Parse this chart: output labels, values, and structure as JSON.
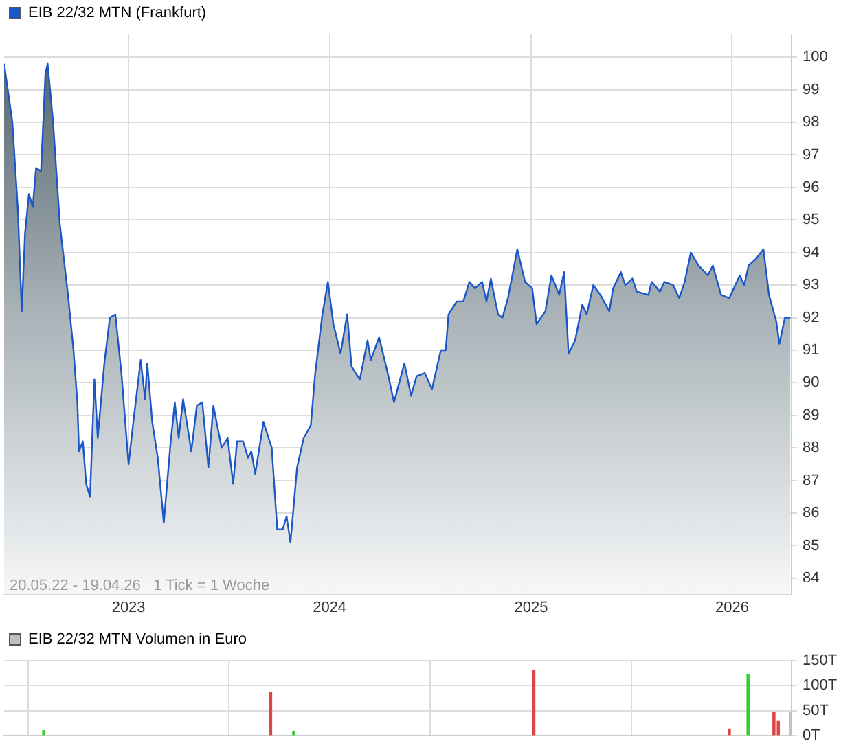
{
  "chart_data": [
    {
      "type": "area",
      "title": null,
      "series": [
        {
          "name": "EIB 22/32 MTN (Frankfurt)",
          "color": "#1a56c8",
          "x": [
            "2022-05-20",
            "2022-06-04",
            "2022-06-14",
            "2022-06-21",
            "2022-06-27",
            "2022-07-04",
            "2022-07-11",
            "2022-07-17",
            "2022-07-26",
            "2022-08-03",
            "2022-08-07",
            "2022-08-17",
            "2022-08-29",
            "2022-09-13",
            "2022-09-23",
            "2022-09-30",
            "2022-10-03",
            "2022-10-10",
            "2022-10-16",
            "2022-10-23",
            "2022-10-31",
            "2022-11-06",
            "2022-11-18",
            "2022-11-28",
            "2022-12-08",
            "2022-12-19",
            "2023-01-01",
            "2023-01-09",
            "2023-01-23",
            "2023-01-31",
            "2023-02-04",
            "2023-02-13",
            "2023-02-23",
            "2023-03-06",
            "2023-03-18",
            "2023-03-26",
            "2023-04-02",
            "2023-04-10",
            "2023-04-25",
            "2023-05-05",
            "2023-05-15",
            "2023-05-26",
            "2023-06-04",
            "2023-06-19",
            "2023-06-30",
            "2023-07-10",
            "2023-07-17",
            "2023-07-28",
            "2023-08-06",
            "2023-08-12",
            "2023-08-19",
            "2023-09-03",
            "2023-09-18",
            "2023-09-28",
            "2023-10-08",
            "2023-10-15",
            "2023-10-22",
            "2023-11-03",
            "2023-11-15",
            "2023-11-28",
            "2023-12-06",
            "2023-12-19",
            "2023-12-29",
            "2024-01-08",
            "2024-01-21",
            "2024-02-02",
            "2024-02-10",
            "2024-02-25",
            "2024-03-10",
            "2024-03-16",
            "2024-03-31",
            "2024-04-17",
            "2024-04-27",
            "2024-05-16",
            "2024-05-28",
            "2024-06-07",
            "2024-06-22",
            "2024-07-05",
            "2024-07-21",
            "2024-07-30",
            "2024-08-04",
            "2024-08-19",
            "2024-08-31",
            "2024-09-11",
            "2024-09-21",
            "2024-10-04",
            "2024-10-12",
            "2024-10-20",
            "2024-11-02",
            "2024-11-10",
            "2024-11-20",
            "2024-11-28",
            "2024-12-07",
            "2024-12-21",
            "2025-01-03",
            "2025-01-11",
            "2025-01-27",
            "2025-02-07",
            "2025-02-21",
            "2025-03-02",
            "2025-03-10",
            "2025-03-22",
            "2025-04-04",
            "2025-04-12",
            "2025-04-24",
            "2025-05-07",
            "2025-05-23",
            "2025-05-30",
            "2025-06-13",
            "2025-06-21",
            "2025-07-04",
            "2025-07-12",
            "2025-08-02",
            "2025-08-08",
            "2025-08-23",
            "2025-08-31",
            "2025-09-16",
            "2025-09-27",
            "2025-10-07",
            "2025-10-18",
            "2025-11-01",
            "2025-11-18",
            "2025-11-27",
            "2025-12-12",
            "2025-12-27",
            "2026-01-15",
            "2026-01-23",
            "2026-01-31",
            "2026-02-13",
            "2026-02-27",
            "2026-03-09",
            "2026-03-22",
            "2026-03-28",
            "2026-04-07",
            "2026-04-17"
          ],
          "values": [
            99.8,
            98.0,
            95.3,
            92.2,
            94.6,
            95.8,
            95.4,
            96.6,
            96.5,
            99.5,
            99.8,
            98.0,
            94.9,
            92.7,
            91.0,
            89.4,
            87.9,
            88.2,
            86.9,
            86.5,
            90.1,
            88.3,
            90.6,
            92.0,
            92.1,
            90.3,
            87.5,
            88.7,
            90.7,
            89.5,
            90.6,
            88.8,
            87.7,
            85.7,
            88.1,
            89.4,
            88.3,
            89.5,
            87.9,
            89.3,
            89.4,
            87.4,
            89.3,
            88.0,
            88.3,
            86.9,
            88.2,
            88.2,
            87.7,
            87.9,
            87.2,
            88.8,
            88.0,
            85.5,
            85.5,
            85.9,
            85.1,
            87.4,
            88.3,
            88.7,
            90.3,
            92.1,
            93.1,
            91.8,
            90.9,
            92.1,
            90.5,
            90.1,
            91.3,
            90.7,
            91.4,
            90.2,
            89.4,
            90.6,
            89.6,
            90.2,
            90.3,
            89.8,
            91.0,
            91.0,
            92.1,
            92.5,
            92.5,
            93.1,
            92.9,
            93.1,
            92.5,
            93.2,
            92.1,
            92.0,
            92.6,
            93.3,
            94.1,
            93.1,
            92.9,
            91.8,
            92.2,
            93.3,
            92.7,
            93.4,
            90.9,
            91.3,
            92.4,
            92.1,
            93.0,
            92.7,
            92.2,
            92.9,
            93.4,
            93.0,
            93.2,
            92.8,
            92.7,
            93.1,
            92.8,
            93.1,
            93.0,
            92.6,
            93.1,
            94.0,
            93.6,
            93.3,
            93.6,
            92.7,
            92.6,
            93.3,
            93.0,
            93.6,
            93.8,
            94.1,
            92.7,
            91.9,
            91.2,
            92.0,
            92.0
          ]
        }
      ],
      "xlim": [
        "2022-05-20",
        "2026-04-19"
      ],
      "xticks": [
        {
          "value": "2023-01-01",
          "label": "2023"
        },
        {
          "value": "2024-01-01",
          "label": "2024"
        },
        {
          "value": "2025-01-01",
          "label": "2025"
        },
        {
          "value": "2026-01-01",
          "label": "2026"
        }
      ],
      "ylim": [
        83.5,
        100.7
      ],
      "yticks": [
        84,
        85,
        86,
        87,
        88,
        89,
        90,
        91,
        92,
        93,
        94,
        95,
        96,
        97,
        98,
        99,
        100
      ],
      "grid": true,
      "legend": "top left",
      "annotations": [
        "20.05.22 - 19.04.26   1 Tick = 1 Woche"
      ]
    },
    {
      "type": "bar",
      "series": [
        {
          "name": "EIB 22/32 MTN Volumen in Euro",
          "color": "#c0c0c0",
          "colors": [
            "#33cc33",
            "#dd4444",
            "#33cc33",
            "#dd4444",
            "#dd4444",
            "#33cc33",
            "#dd4444",
            "#dd4444",
            "#c0c0c0"
          ],
          "x": [
            "2022-07-31",
            "2023-09-16",
            "2023-10-28",
            "2025-01-06",
            "2025-12-27",
            "2026-01-30",
            "2026-03-18",
            "2026-03-26",
            "2026-04-17"
          ],
          "values": [
            10,
            87,
            8,
            131,
            13,
            123,
            47,
            28,
            47
          ]
        }
      ],
      "xlim": [
        "2022-05-20",
        "2026-04-19"
      ],
      "xticks": [
        {
          "value": "2023-01-01",
          "label": null
        },
        {
          "value": "2024-01-01",
          "label": null
        },
        {
          "value": "2025-01-01",
          "label": null
        },
        {
          "value": "2026-01-01",
          "label": null
        }
      ],
      "ylim": [
        0,
        150
      ],
      "yticks": [
        {
          "value": 0,
          "label": "0T"
        },
        {
          "value": 50,
          "label": "50T"
        },
        {
          "value": 100,
          "label": "100T"
        },
        {
          "value": 150,
          "label": "150T"
        }
      ],
      "grid": true,
      "legend": "top left",
      "tick_labels": "y"
    }
  ]
}
